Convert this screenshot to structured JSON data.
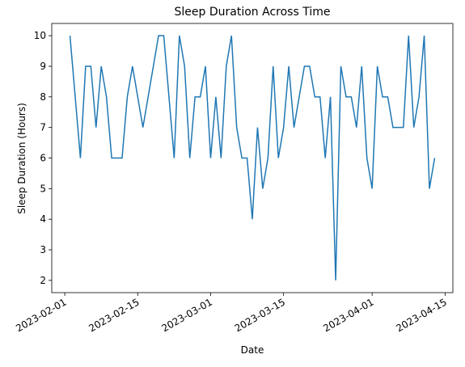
{
  "chart_data": {
    "type": "line",
    "title": "Sleep Duration Across Time",
    "xlabel": "Date",
    "ylabel": "Sleep Duration (Hours)",
    "x": [
      "2023-02-02",
      "2023-02-03",
      "2023-02-04",
      "2023-02-05",
      "2023-02-06",
      "2023-02-07",
      "2023-02-08",
      "2023-02-09",
      "2023-02-10",
      "2023-02-11",
      "2023-02-12",
      "2023-02-13",
      "2023-02-14",
      "2023-02-15",
      "2023-02-16",
      "2023-02-17",
      "2023-02-18",
      "2023-02-19",
      "2023-02-20",
      "2023-02-21",
      "2023-02-22",
      "2023-02-23",
      "2023-02-24",
      "2023-02-25",
      "2023-02-26",
      "2023-02-27",
      "2023-02-28",
      "2023-03-01",
      "2023-03-02",
      "2023-03-03",
      "2023-03-04",
      "2023-03-05",
      "2023-03-06",
      "2023-03-07",
      "2023-03-08",
      "2023-03-09",
      "2023-03-10",
      "2023-03-11",
      "2023-03-12",
      "2023-03-13",
      "2023-03-14",
      "2023-03-15",
      "2023-03-16",
      "2023-03-17",
      "2023-03-18",
      "2023-03-19",
      "2023-03-20",
      "2023-03-21",
      "2023-03-22",
      "2023-03-23",
      "2023-03-24",
      "2023-03-25",
      "2023-03-26",
      "2023-03-27",
      "2023-03-28",
      "2023-03-29",
      "2023-03-30",
      "2023-03-31",
      "2023-04-01",
      "2023-04-02",
      "2023-04-03",
      "2023-04-04",
      "2023-04-05",
      "2023-04-06",
      "2023-04-07",
      "2023-04-08",
      "2023-04-09",
      "2023-04-10",
      "2023-04-11",
      "2023-04-12",
      "2023-04-13"
    ],
    "series": [
      {
        "name": "Sleep Duration",
        "color": "#1f77b4",
        "values": [
          10,
          8,
          6,
          9,
          9,
          7,
          9,
          8,
          6,
          6,
          6,
          8,
          9,
          8,
          7,
          8,
          9,
          10,
          10,
          8,
          6,
          10,
          9,
          6,
          8,
          8,
          9,
          6,
          8,
          6,
          9,
          10,
          7,
          6,
          6,
          4,
          7,
          5,
          6,
          9,
          6,
          7,
          9,
          7,
          8,
          9,
          9,
          8,
          8,
          6,
          8,
          2,
          9,
          8,
          8,
          7,
          9,
          6,
          5,
          9,
          8,
          8,
          7,
          7,
          7,
          10,
          7,
          8,
          10,
          5,
          6
        ]
      }
    ],
    "xlim": [
      "2023-01-29T12:00:00Z",
      "2023-04-16T12:00:00Z"
    ],
    "xticks": [
      "2023-02-01",
      "2023-02-15",
      "2023-03-01",
      "2023-03-15",
      "2023-04-01",
      "2023-04-15"
    ],
    "ylim": [
      1.6,
      10.4
    ],
    "yticks": [
      2,
      3,
      4,
      5,
      6,
      7,
      8,
      9,
      10
    ],
    "grid": false
  }
}
